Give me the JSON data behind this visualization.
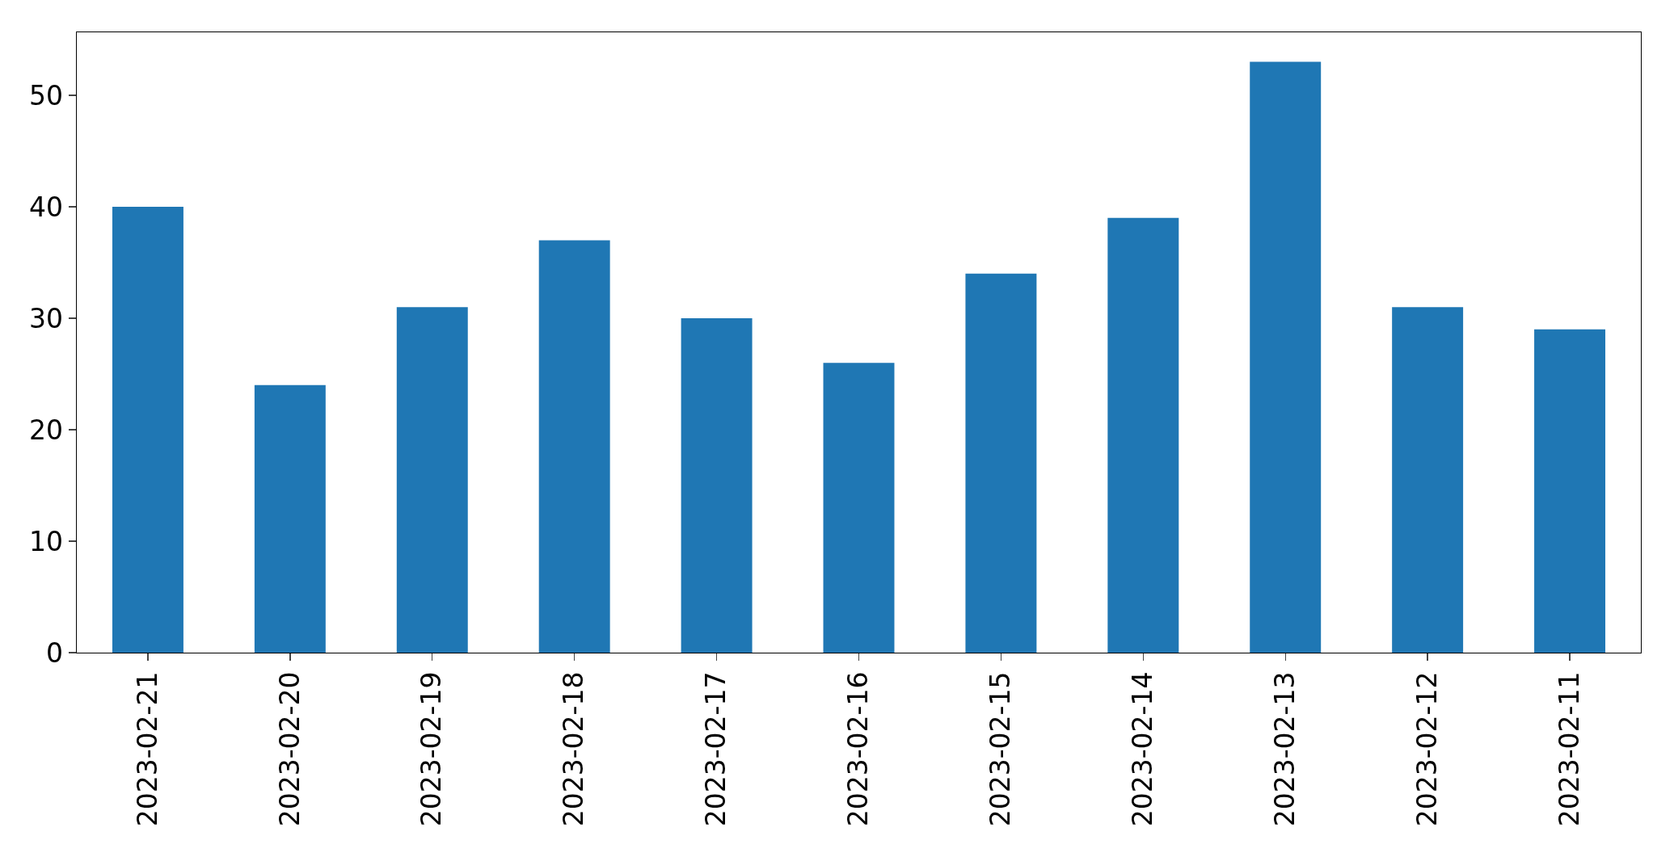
{
  "chart_data": {
    "type": "bar",
    "categories": [
      "2023-02-21",
      "2023-02-20",
      "2023-02-19",
      "2023-02-18",
      "2023-02-17",
      "2023-02-16",
      "2023-02-15",
      "2023-02-14",
      "2023-02-13",
      "2023-02-12",
      "2023-02-11"
    ],
    "values": [
      40,
      24,
      31,
      37,
      30,
      26,
      34,
      39,
      53,
      31,
      29
    ],
    "color": "#1f77b4",
    "ylim": [
      0,
      55.65
    ],
    "yticks": [
      0,
      10,
      20,
      30,
      40,
      50
    ],
    "grid": false
  }
}
